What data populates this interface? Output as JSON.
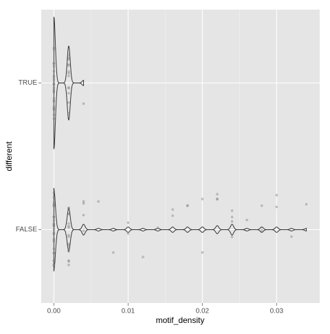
{
  "chart_data": {
    "type": "violin",
    "x_label": "motif_density",
    "y_label": "different",
    "categories": [
      "FALSE",
      "TRUE"
    ],
    "xlim": [
      -0.0017,
      0.0358
    ],
    "xticks": [
      {
        "value": 0,
        "label": "0.00"
      },
      0.01,
      0.02,
      0.03
    ],
    "grid": true,
    "series": [
      {
        "category": "FALSE",
        "values": [
          0,
          0,
          0,
          0,
          0,
          0,
          0,
          0,
          0,
          0,
          0,
          0,
          0,
          0,
          0,
          0,
          0,
          0,
          0,
          0,
          0,
          0,
          0,
          0,
          0,
          0,
          0,
          0,
          0,
          0,
          0.002,
          0.002,
          0.002,
          0.002,
          0.002,
          0.002,
          0.002,
          0.002,
          0.002,
          0.002,
          0.002,
          0.002,
          0.002,
          0.002,
          0.002,
          0.002,
          0.004,
          0.004,
          0.004,
          0.004,
          0.006,
          0.008,
          0.01,
          0.01,
          0.012,
          0.014,
          0.016,
          0.016,
          0.018,
          0.018,
          0.02,
          0.02,
          0.022,
          0.022,
          0.022,
          0.024,
          0.024,
          0.024,
          0.024,
          0.026,
          0.028,
          0.028,
          0.03,
          0.03,
          0.032,
          0.034
        ]
      },
      {
        "category": "TRUE",
        "values": [
          0,
          0,
          0,
          0,
          0,
          0,
          0,
          0,
          0,
          0,
          0,
          0,
          0,
          0,
          0,
          0,
          0,
          0,
          0,
          0,
          0,
          0,
          0,
          0,
          0,
          0.002,
          0.002,
          0.002,
          0.002,
          0.002,
          0.002,
          0.002,
          0.002,
          0.002,
          0.002,
          0.002,
          0.002,
          0.002,
          0.002,
          0.004
        ]
      }
    ]
  }
}
